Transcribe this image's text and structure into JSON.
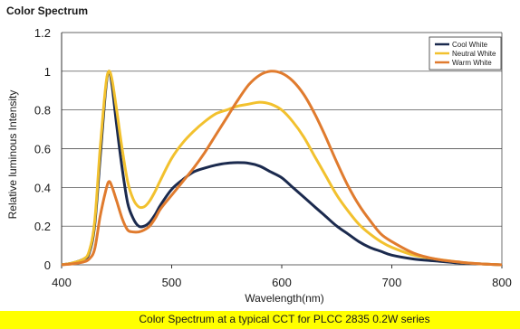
{
  "chart_data": {
    "type": "line",
    "title": "Color Spectrum",
    "xlabel": "Wavelength(nm)",
    "ylabel": "Relative luminous Intensity",
    "caption": "Color Spectrum at a typical CCT for PLCC 2835 0.2W series",
    "xlim": [
      400,
      800
    ],
    "ylim": [
      0,
      1.2
    ],
    "x_ticks": [
      "400",
      "500",
      "600",
      "700",
      "800"
    ],
    "y_ticks": [
      "0",
      "0.2",
      "0.4",
      "0.6",
      "0.8",
      "1",
      "1.2"
    ],
    "grid": "horizontal",
    "legend_position": "top-right",
    "colors": {
      "caption_highlight": "#ffff00",
      "grid": "#333333",
      "axis": "#333333"
    },
    "series": [
      {
        "name": "Cool White",
        "color": "#1b2a4e",
        "x": [
          400,
          410,
          420,
          425,
          430,
          435,
          440,
          443,
          446,
          450,
          455,
          460,
          465,
          470,
          475,
          480,
          485,
          490,
          500,
          510,
          520,
          530,
          540,
          550,
          560,
          570,
          580,
          590,
          600,
          610,
          620,
          630,
          640,
          650,
          660,
          670,
          680,
          690,
          700,
          720,
          740,
          760,
          780,
          800
        ],
        "y": [
          0.0,
          0.01,
          0.03,
          0.06,
          0.2,
          0.55,
          0.9,
          1.0,
          0.92,
          0.72,
          0.5,
          0.32,
          0.24,
          0.2,
          0.2,
          0.22,
          0.26,
          0.31,
          0.39,
          0.44,
          0.48,
          0.5,
          0.515,
          0.525,
          0.528,
          0.525,
          0.51,
          0.48,
          0.45,
          0.4,
          0.35,
          0.3,
          0.25,
          0.2,
          0.16,
          0.12,
          0.09,
          0.07,
          0.05,
          0.03,
          0.02,
          0.01,
          0.005,
          0.0
        ]
      },
      {
        "name": "Neutral White",
        "color": "#f2c12e",
        "x": [
          400,
          410,
          420,
          425,
          430,
          435,
          440,
          443,
          446,
          450,
          455,
          460,
          465,
          470,
          475,
          480,
          485,
          490,
          500,
          510,
          520,
          530,
          540,
          550,
          560,
          570,
          580,
          590,
          600,
          610,
          620,
          630,
          640,
          650,
          660,
          670,
          680,
          690,
          700,
          720,
          740,
          760,
          780,
          800
        ],
        "y": [
          0.0,
          0.01,
          0.03,
          0.07,
          0.22,
          0.6,
          0.92,
          1.0,
          0.95,
          0.8,
          0.6,
          0.43,
          0.34,
          0.3,
          0.3,
          0.33,
          0.38,
          0.44,
          0.55,
          0.63,
          0.69,
          0.74,
          0.78,
          0.8,
          0.82,
          0.83,
          0.84,
          0.83,
          0.8,
          0.74,
          0.66,
          0.56,
          0.46,
          0.36,
          0.28,
          0.21,
          0.16,
          0.12,
          0.09,
          0.05,
          0.03,
          0.015,
          0.005,
          0.0
        ]
      },
      {
        "name": "Warm White",
        "color": "#e07b2e",
        "x": [
          400,
          410,
          420,
          425,
          430,
          435,
          440,
          443,
          446,
          450,
          455,
          460,
          465,
          470,
          475,
          480,
          485,
          490,
          500,
          510,
          520,
          530,
          540,
          550,
          560,
          570,
          580,
          590,
          600,
          610,
          620,
          630,
          640,
          650,
          660,
          670,
          680,
          690,
          700,
          720,
          740,
          760,
          780,
          800
        ],
        "y": [
          0.0,
          0.005,
          0.015,
          0.03,
          0.08,
          0.25,
          0.38,
          0.43,
          0.4,
          0.33,
          0.24,
          0.18,
          0.17,
          0.17,
          0.18,
          0.2,
          0.24,
          0.29,
          0.36,
          0.43,
          0.5,
          0.58,
          0.67,
          0.76,
          0.85,
          0.93,
          0.98,
          1.0,
          0.99,
          0.95,
          0.88,
          0.78,
          0.66,
          0.53,
          0.41,
          0.31,
          0.23,
          0.16,
          0.12,
          0.06,
          0.03,
          0.015,
          0.005,
          0.0
        ]
      }
    ]
  }
}
